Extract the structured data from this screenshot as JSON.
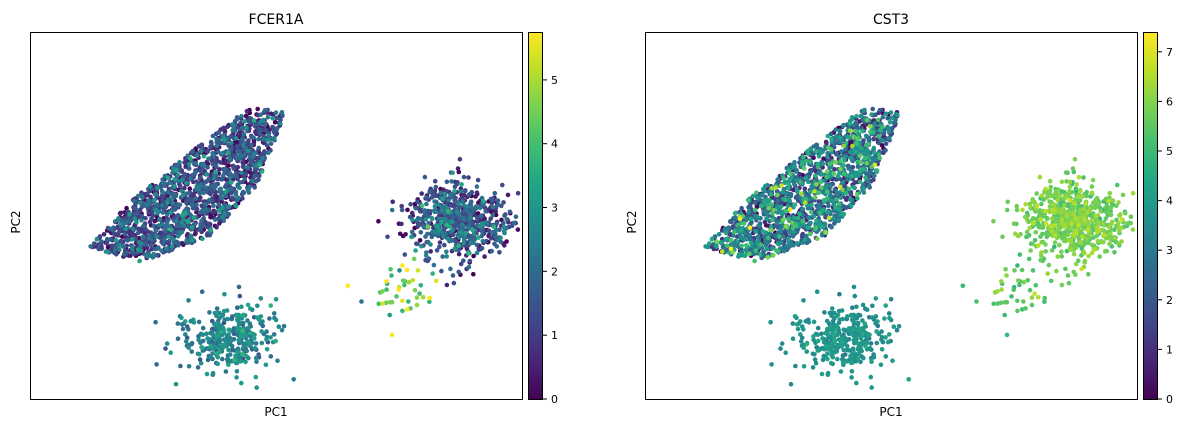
{
  "chart_data": [
    {
      "type": "scatter",
      "title": "FCER1A",
      "xlabel": "PC1",
      "ylabel": "PC2",
      "x_ticks": "none",
      "y_ticks": "none",
      "grid": false,
      "colormap": "viridis",
      "colorbar": {
        "min": 0,
        "max": 5.75,
        "ticks": [
          "0",
          "1",
          "2",
          "3",
          "4",
          "5"
        ]
      },
      "clusters": [
        {
          "name": "upper-left band",
          "region": [
            [
              60,
              215
            ],
            [
              100,
              170
            ],
            [
              160,
              120
            ],
            [
              220,
              75
            ],
            [
              255,
              80
            ],
            [
              230,
              150
            ],
            [
              180,
              205
            ],
            [
              110,
              230
            ]
          ],
          "n": 1500,
          "value_mean": 1.1,
          "value_sd": 0.9
        },
        {
          "name": "lower-middle",
          "center": [
            200,
            305
          ],
          "spread": [
            38,
            32
          ],
          "n": 330,
          "value_mean": 2.5,
          "value_sd": 0.5
        },
        {
          "name": "right",
          "center": [
            428,
            190
          ],
          "spread": [
            40,
            32
          ],
          "n": 650,
          "value_mean": 1.3,
          "value_sd": 0.9
        },
        {
          "name": "right scattered",
          "center": [
            370,
            258
          ],
          "spread": [
            38,
            28
          ],
          "n": 45,
          "value_mean": 4.5,
          "value_sd": 0.9
        }
      ],
      "value_range": [
        0,
        5.75
      ]
    },
    {
      "type": "scatter",
      "title": "CST3",
      "xlabel": "PC1",
      "ylabel": "PC2",
      "x_ticks": "none",
      "y_ticks": "none",
      "grid": false,
      "colormap": "viridis",
      "colorbar": {
        "min": 0,
        "max": 7.4,
        "ticks": [
          "0",
          "1",
          "2",
          "3",
          "4",
          "5",
          "6",
          "7"
        ]
      },
      "clusters": [
        {
          "name": "upper-left band",
          "region": [
            [
              60,
              215
            ],
            [
              100,
              170
            ],
            [
              160,
              120
            ],
            [
              220,
              75
            ],
            [
              255,
              80
            ],
            [
              230,
              150
            ],
            [
              180,
              205
            ],
            [
              110,
              230
            ]
          ],
          "n": 1500,
          "value_mean": 2.4,
          "value_sd": 1.6
        },
        {
          "name": "lower-middle",
          "center": [
            200,
            305
          ],
          "spread": [
            38,
            32
          ],
          "n": 330,
          "value_mean": 3.7,
          "value_sd": 0.35
        },
        {
          "name": "right",
          "center": [
            428,
            190
          ],
          "spread": [
            40,
            32
          ],
          "n": 650,
          "value_mean": 5.75,
          "value_sd": 0.4
        },
        {
          "name": "right scattered",
          "center": [
            370,
            258
          ],
          "spread": [
            38,
            28
          ],
          "n": 45,
          "value_mean": 5.5,
          "value_sd": 0.5
        }
      ],
      "value_range": [
        0,
        7.4
      ]
    }
  ]
}
